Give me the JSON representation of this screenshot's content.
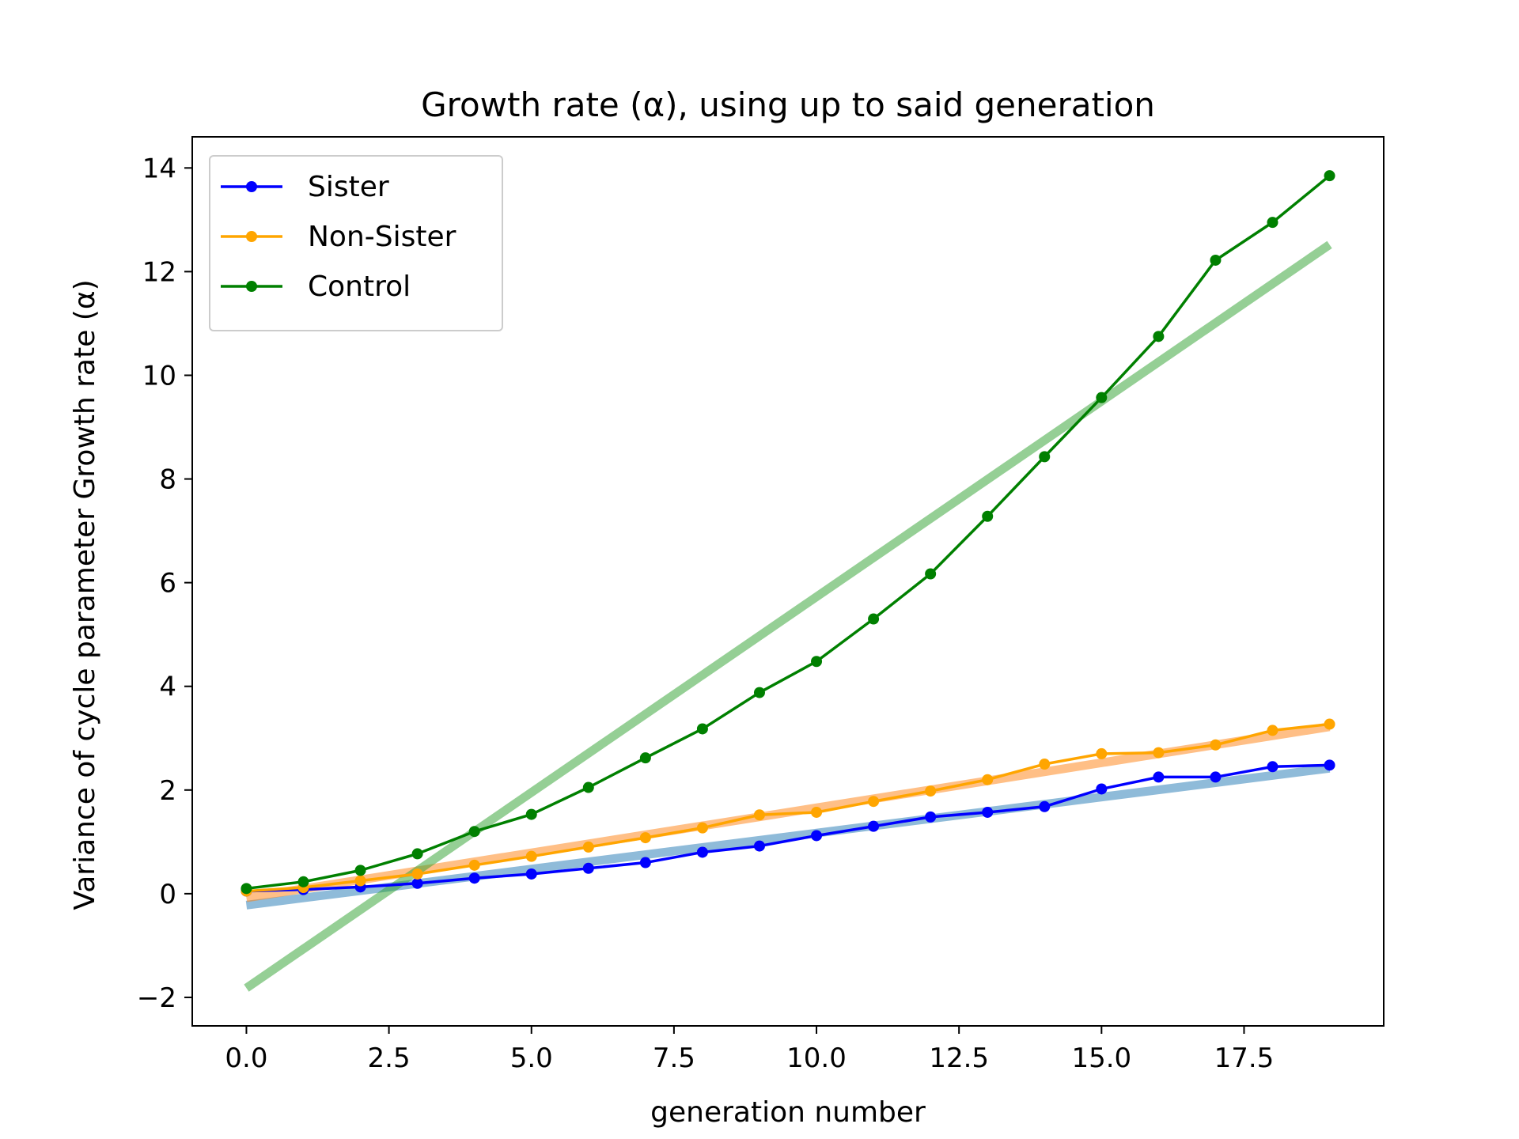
{
  "chart_data": {
    "type": "line",
    "title": "Growth rate (α), using up to said generation",
    "xlabel": "generation number",
    "ylabel": "Variance of cycle parameter Growth rate (α)",
    "xlim": [
      -0.95,
      19.95
    ],
    "ylim": [
      -2.55,
      14.6
    ],
    "xticks": [
      0.0,
      2.5,
      5.0,
      7.5,
      10.0,
      12.5,
      15.0,
      17.5
    ],
    "xtick_labels": [
      "0.0",
      "2.5",
      "5.0",
      "7.5",
      "10.0",
      "12.5",
      "15.0",
      "17.5"
    ],
    "yticks": [
      -2,
      0,
      2,
      4,
      6,
      8,
      10,
      12,
      14
    ],
    "ytick_labels": [
      "−2",
      "0",
      "2",
      "4",
      "6",
      "8",
      "10",
      "12",
      "14"
    ],
    "grid": false,
    "legend_position": "top-left",
    "x": [
      0,
      1,
      2,
      3,
      4,
      5,
      6,
      7,
      8,
      9,
      10,
      11,
      12,
      13,
      14,
      15,
      16,
      17,
      18,
      19
    ],
    "series": [
      {
        "name": "Sister",
        "color": "#0000ff",
        "values": [
          0.05,
          0.08,
          0.13,
          0.2,
          0.3,
          0.38,
          0.49,
          0.6,
          0.8,
          0.92,
          1.12,
          1.3,
          1.48,
          1.57,
          1.68,
          2.02,
          2.25,
          2.25,
          2.45,
          2.48
        ]
      },
      {
        "name": "Non-Sister",
        "color": "#ffa500",
        "values": [
          0.05,
          0.12,
          0.25,
          0.38,
          0.55,
          0.72,
          0.9,
          1.08,
          1.27,
          1.52,
          1.57,
          1.78,
          1.98,
          2.2,
          2.5,
          2.7,
          2.72,
          2.87,
          3.15,
          3.27
        ]
      },
      {
        "name": "Control",
        "color": "#008000",
        "values": [
          0.1,
          0.23,
          0.45,
          0.77,
          1.2,
          1.53,
          2.05,
          2.62,
          3.18,
          3.88,
          4.48,
          5.3,
          6.17,
          7.28,
          8.43,
          9.57,
          10.75,
          12.22,
          12.95,
          13.85
        ]
      }
    ],
    "fit_lines": [
      {
        "series": "Sister",
        "color": "#1f77b4",
        "x": [
          0,
          19
        ],
        "values": [
          -0.22,
          2.42
        ]
      },
      {
        "series": "Non-Sister",
        "color": "#ff7f0e",
        "x": [
          0,
          19
        ],
        "values": [
          -0.08,
          3.22
        ]
      },
      {
        "series": "Control",
        "color": "#2ca02c",
        "x": [
          0,
          19
        ],
        "values": [
          -1.82,
          12.52
        ]
      }
    ]
  }
}
